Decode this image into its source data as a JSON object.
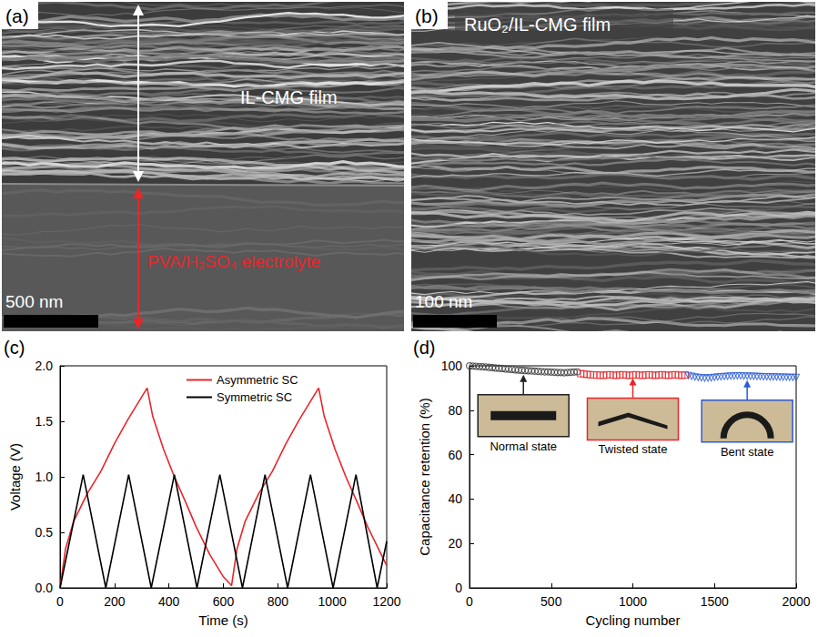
{
  "images": [
    {
      "panel_label": "(a)",
      "labels": [
        {
          "text": "IL-CMG film",
          "color": "#ffffff"
        },
        {
          "text": "PVA/H₂SO₄ electrolyte",
          "color": "#e8262b"
        }
      ],
      "scale_bar": "500 nm"
    },
    {
      "panel_label": "(b)",
      "labels": [
        {
          "text": "RuO₂/IL-CMG film",
          "color": "#ffffff"
        }
      ],
      "scale_bar": "100 nm"
    }
  ],
  "chart_data": [
    {
      "type": "line",
      "panel_label": "(c)",
      "x_label": "Time (s)",
      "y_label": "Voltage (V)",
      "xlim": [
        0,
        1200
      ],
      "xticks": [
        0,
        200,
        400,
        600,
        800,
        1000,
        1200
      ],
      "ylim": [
        0,
        2
      ],
      "yticks": [
        {
          "value": 0,
          "label": "0.0"
        },
        0.5,
        {
          "value": 1,
          "label": "1.0"
        },
        1.5,
        {
          "value": 2,
          "label": "2.0"
        }
      ],
      "legend": "top",
      "series": [
        {
          "name": "Asymmetric SC",
          "color": "#e8262b",
          "x": [
            0,
            20,
            50,
            100,
            150,
            200,
            250,
            300,
            320,
            340,
            380,
            420,
            460,
            500,
            550,
            600,
            630,
            650,
            680,
            730,
            780,
            830,
            880,
            930,
            950,
            970,
            1010,
            1050,
            1090,
            1130,
            1180,
            1200
          ],
          "values": [
            0,
            0.35,
            0.6,
            0.85,
            1.05,
            1.3,
            1.52,
            1.72,
            1.8,
            1.55,
            1.25,
            1.0,
            0.78,
            0.55,
            0.3,
            0.1,
            0.02,
            0.35,
            0.6,
            0.85,
            1.05,
            1.3,
            1.52,
            1.72,
            1.8,
            1.55,
            1.25,
            1.0,
            0.78,
            0.55,
            0.3,
            0.2
          ]
        },
        {
          "name": "Symmetric SC",
          "color": "#000000",
          "x": [
            0,
            85,
            168,
            252,
            335,
            420,
            503,
            587,
            670,
            753,
            836,
            920,
            1003,
            1087,
            1165,
            1200
          ],
          "values": [
            0,
            1.02,
            0,
            1.02,
            0,
            1.02,
            0,
            1.02,
            0,
            1.02,
            0,
            1.02,
            0,
            1.02,
            0,
            0.42
          ]
        }
      ]
    },
    {
      "type": "scatter",
      "panel_label": "(d)",
      "x_label": "Cycling number",
      "y_label": "Capacitance retention (%)",
      "xlim": [
        0,
        2000
      ],
      "xticks": [
        0,
        500,
        1000,
        1500,
        2000
      ],
      "ylim": [
        0,
        100
      ],
      "yticks": [
        0,
        20,
        40,
        60,
        80,
        100
      ],
      "series": [
        {
          "color": "#333333",
          "marker": "circle",
          "x": [
            0,
            20,
            40,
            60,
            80,
            100,
            120,
            140,
            160,
            180,
            200,
            220,
            240,
            260,
            280,
            300,
            320,
            340,
            360,
            380,
            400,
            420,
            440,
            460,
            480,
            500,
            520,
            540,
            560,
            580,
            600,
            620,
            640,
            660
          ],
          "values": [
            100,
            99.9,
            99.8,
            99.7,
            99.6,
            99.5,
            99.3,
            99.2,
            99.0,
            98.9,
            98.8,
            98.6,
            98.5,
            98.4,
            98.2,
            98.1,
            98.0,
            97.9,
            97.8,
            97.7,
            97.6,
            97.5,
            97.4,
            97.3,
            97.3,
            97.2,
            97.1,
            97.0,
            97.0,
            96.9,
            97.0,
            97.1,
            97.2,
            97.3
          ]
        },
        {
          "color": "#e8262b",
          "marker": "square",
          "x": [
            680,
            700,
            720,
            740,
            760,
            780,
            800,
            820,
            840,
            860,
            880,
            900,
            920,
            940,
            960,
            980,
            1000,
            1020,
            1040,
            1060,
            1080,
            1100,
            1120,
            1140,
            1160,
            1180,
            1200,
            1220,
            1240,
            1260,
            1280,
            1300,
            1320
          ],
          "values": [
            96.5,
            96.3,
            96.1,
            96.0,
            95.9,
            95.8,
            95.8,
            95.7,
            95.9,
            96.0,
            95.8,
            95.7,
            95.9,
            96.0,
            95.8,
            95.7,
            95.9,
            96.0,
            95.8,
            95.7,
            95.9,
            96.0,
            95.8,
            95.7,
            95.9,
            96.0,
            95.8,
            95.7,
            95.9,
            96.0,
            95.8,
            95.7,
            95.9
          ]
        },
        {
          "color": "#2a5bd7",
          "marker": "triangle_down",
          "x": [
            1340,
            1360,
            1380,
            1400,
            1420,
            1440,
            1460,
            1480,
            1500,
            1520,
            1540,
            1560,
            1580,
            1600,
            1620,
            1640,
            1660,
            1680,
            1700,
            1720,
            1740,
            1760,
            1780,
            1800,
            1820,
            1840,
            1860,
            1880,
            1900,
            1920,
            1940,
            1960,
            1980,
            2000
          ],
          "values": [
            95.6,
            95.3,
            95.0,
            94.8,
            94.6,
            94.5,
            94.5,
            94.6,
            94.8,
            95.0,
            95.1,
            95.2,
            95.3,
            95.4,
            95.4,
            95.5,
            95.5,
            95.4,
            95.4,
            95.3,
            95.3,
            95.2,
            95.2,
            95.1,
            95.1,
            95.0,
            95.0,
            95.0,
            94.9,
            94.9,
            94.9,
            94.8,
            94.8,
            94.8
          ]
        }
      ],
      "annotations": [
        {
          "text": "Normal state",
          "x": 330,
          "y": 96,
          "color": "#222222"
        },
        {
          "text": "Twisted state",
          "x": 1000,
          "y": 94.5,
          "color": "#e8262b"
        },
        {
          "text": "Bent state",
          "x": 1700,
          "y": 93.5,
          "color": "#2a5bd7"
        }
      ]
    }
  ]
}
